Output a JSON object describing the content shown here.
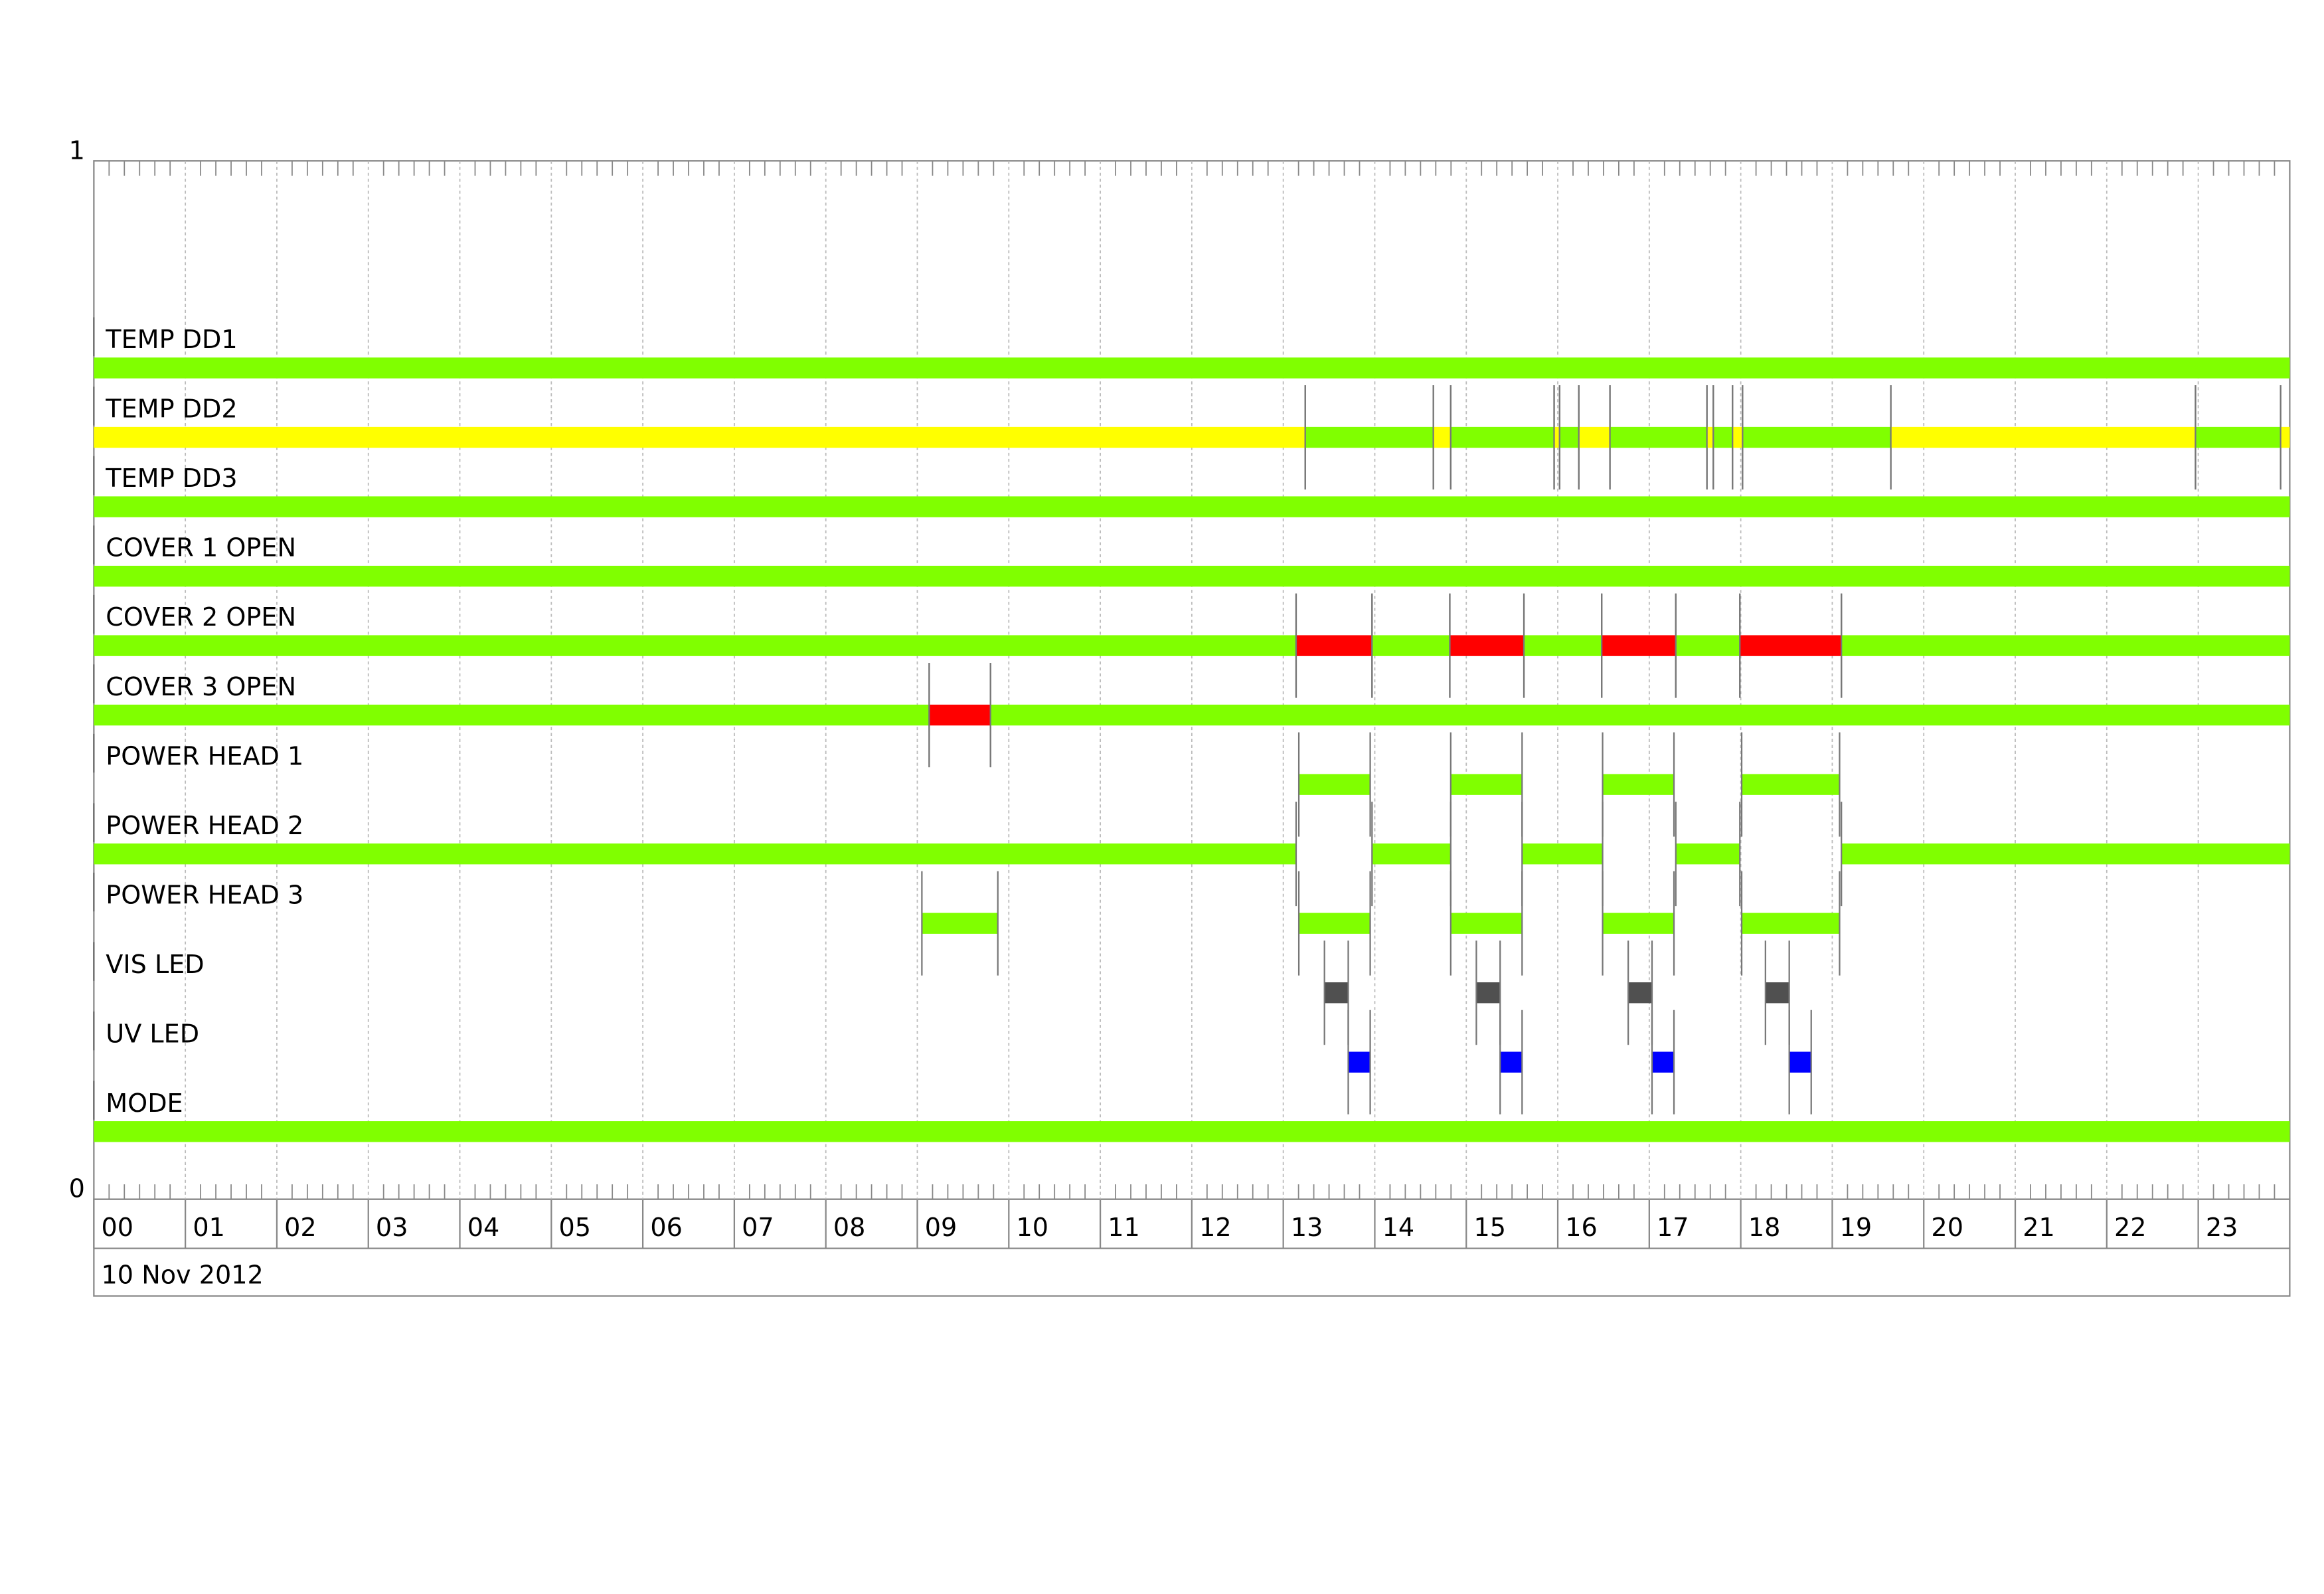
{
  "chart_data": {
    "type": "timeline",
    "xlabel": "10 Nov 2012",
    "xlim": [
      0,
      24
    ],
    "xticks": [
      {
        "value": 0,
        "label": "00"
      },
      {
        "value": 1,
        "label": "01"
      },
      {
        "value": 2,
        "label": "02"
      },
      {
        "value": 3,
        "label": "03"
      },
      {
        "value": 4,
        "label": "04"
      },
      {
        "value": 5,
        "label": "05"
      },
      {
        "value": 6,
        "label": "06"
      },
      {
        "value": 7,
        "label": "07"
      },
      {
        "value": 8,
        "label": "08"
      },
      {
        "value": 9,
        "label": "09"
      },
      10,
      11,
      12,
      13,
      14,
      15,
      16,
      17,
      18,
      19,
      20,
      21,
      22,
      23
    ],
    "ylim": [
      0,
      1
    ],
    "yticks": [
      0,
      1
    ],
    "grid": true,
    "series": [
      {
        "name": "TEMP DD1",
        "segments": [
          {
            "start": 0,
            "end": 24,
            "color": "#80ff00"
          }
        ]
      },
      {
        "name": "TEMP DD2",
        "segments": [
          {
            "start": 0,
            "end": 13.24,
            "color": "#ffff00"
          },
          {
            "start": 13.24,
            "end": 14.64,
            "color": "#80ff00"
          },
          {
            "start": 14.64,
            "end": 14.83,
            "color": "#ffff00"
          },
          {
            "start": 14.83,
            "end": 15.96,
            "color": "#80ff00"
          },
          {
            "start": 15.96,
            "end": 16.02,
            "color": "#ffff00"
          },
          {
            "start": 16.02,
            "end": 16.23,
            "color": "#80ff00"
          },
          {
            "start": 16.23,
            "end": 16.57,
            "color": "#ffff00"
          },
          {
            "start": 16.57,
            "end": 17.63,
            "color": "#80ff00"
          },
          {
            "start": 17.63,
            "end": 17.7,
            "color": "#ffff00"
          },
          {
            "start": 17.7,
            "end": 17.91,
            "color": "#80ff00"
          },
          {
            "start": 17.91,
            "end": 18.02,
            "color": "#ffff00"
          },
          {
            "start": 18.02,
            "end": 19.64,
            "color": "#80ff00"
          },
          {
            "start": 19.64,
            "end": 22.97,
            "color": "#ffff00"
          },
          {
            "start": 22.97,
            "end": 23.9,
            "color": "#80ff00"
          },
          {
            "start": 23.9,
            "end": 24,
            "color": "#ffff00"
          }
        ]
      },
      {
        "name": "TEMP DD3",
        "segments": [
          {
            "start": 0,
            "end": 24,
            "color": "#80ff00"
          }
        ]
      },
      {
        "name": "COVER 1 OPEN",
        "segments": [
          {
            "start": 0,
            "end": 24,
            "color": "#80ff00"
          }
        ]
      },
      {
        "name": "COVER 2 OPEN",
        "segments": [
          {
            "start": 0,
            "end": 13.14,
            "color": "#80ff00"
          },
          {
            "start": 13.14,
            "end": 13.97,
            "color": "#ff0000"
          },
          {
            "start": 13.97,
            "end": 14.82,
            "color": "#80ff00"
          },
          {
            "start": 14.82,
            "end": 15.63,
            "color": "#ff0000"
          },
          {
            "start": 15.63,
            "end": 16.48,
            "color": "#80ff00"
          },
          {
            "start": 16.48,
            "end": 17.29,
            "color": "#ff0000"
          },
          {
            "start": 17.29,
            "end": 17.99,
            "color": "#80ff00"
          },
          {
            "start": 17.99,
            "end": 19.1,
            "color": "#ff0000"
          },
          {
            "start": 19.1,
            "end": 24,
            "color": "#80ff00"
          }
        ]
      },
      {
        "name": "COVER 3 OPEN",
        "segments": [
          {
            "start": 0,
            "end": 9.13,
            "color": "#80ff00"
          },
          {
            "start": 9.13,
            "end": 9.8,
            "color": "#ff0000"
          },
          {
            "start": 9.8,
            "end": 24,
            "color": "#80ff00"
          }
        ]
      },
      {
        "name": "POWER HEAD 1",
        "segments": [
          {
            "start": 13.17,
            "end": 13.95,
            "color": "#80ff00"
          },
          {
            "start": 14.83,
            "end": 15.61,
            "color": "#80ff00"
          },
          {
            "start": 16.49,
            "end": 17.27,
            "color": "#80ff00"
          },
          {
            "start": 18.01,
            "end": 19.08,
            "color": "#80ff00"
          }
        ]
      },
      {
        "name": "POWER HEAD 2",
        "segments": [
          {
            "start": 0,
            "end": 13.14,
            "color": "#80ff00"
          },
          {
            "start": 13.97,
            "end": 14.83,
            "color": "#80ff00"
          },
          {
            "start": 15.61,
            "end": 16.49,
            "color": "#80ff00"
          },
          {
            "start": 17.29,
            "end": 17.99,
            "color": "#80ff00"
          },
          {
            "start": 19.1,
            "end": 24,
            "color": "#80ff00"
          }
        ]
      },
      {
        "name": "POWER HEAD 3",
        "segments": [
          {
            "start": 9.05,
            "end": 9.88,
            "color": "#80ff00"
          },
          {
            "start": 13.17,
            "end": 13.95,
            "color": "#80ff00"
          },
          {
            "start": 14.83,
            "end": 15.61,
            "color": "#80ff00"
          },
          {
            "start": 16.49,
            "end": 17.27,
            "color": "#80ff00"
          },
          {
            "start": 18.01,
            "end": 19.08,
            "color": "#80ff00"
          }
        ]
      },
      {
        "name": "VIS LED",
        "segments": [
          {
            "start": 13.45,
            "end": 13.71,
            "color": "#505050"
          },
          {
            "start": 15.11,
            "end": 15.37,
            "color": "#505050"
          },
          {
            "start": 16.77,
            "end": 17.03,
            "color": "#505050"
          },
          {
            "start": 18.27,
            "end": 18.53,
            "color": "#505050"
          }
        ]
      },
      {
        "name": "UV LED",
        "segments": [
          {
            "start": 13.71,
            "end": 13.95,
            "color": "#0000ff"
          },
          {
            "start": 15.37,
            "end": 15.61,
            "color": "#0000ff"
          },
          {
            "start": 17.03,
            "end": 17.27,
            "color": "#0000ff"
          },
          {
            "start": 18.53,
            "end": 18.77,
            "color": "#0000ff"
          }
        ]
      },
      {
        "name": "MODE",
        "segments": [
          {
            "start": 0,
            "end": 24,
            "color": "#80ff00"
          }
        ]
      }
    ]
  }
}
